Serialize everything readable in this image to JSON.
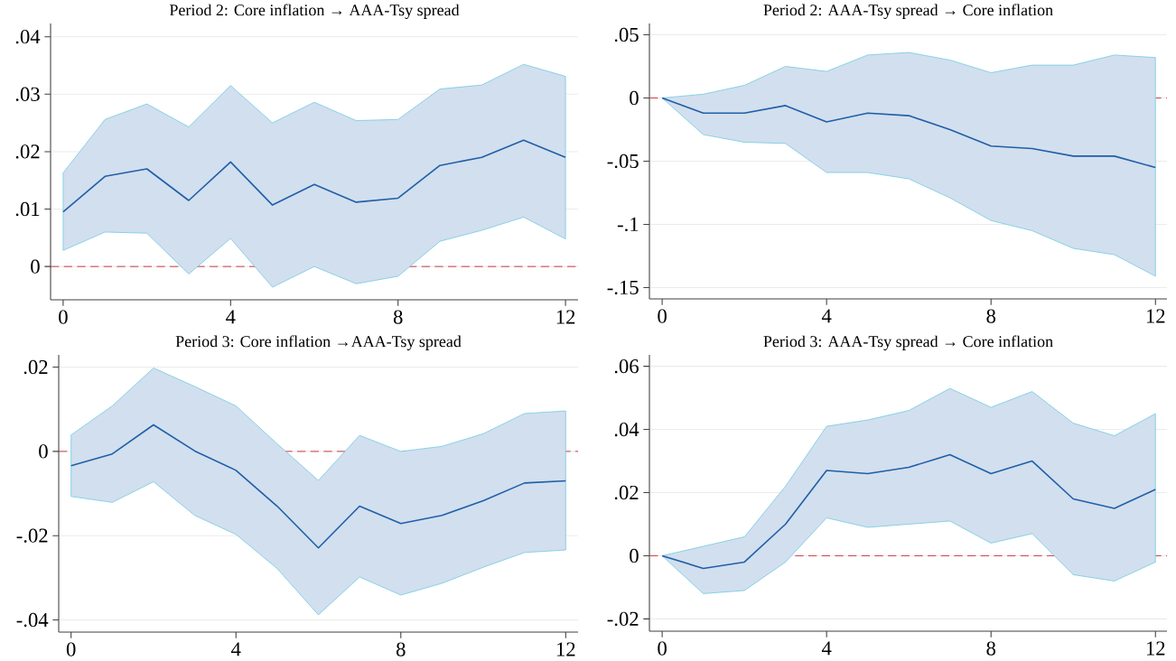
{
  "chart_data": [
    {
      "type": "line",
      "title": "Period 2: Core inflation → AAA-Tsy spread",
      "x": [
        0,
        1,
        2,
        3,
        4,
        5,
        6,
        7,
        8,
        9,
        10,
        11,
        12
      ],
      "series": [
        {
          "color": "#1f5fa8",
          "values": [
            0.0095,
            0.0157,
            0.017,
            0.0115,
            0.0182,
            0.0107,
            0.0143,
            0.0112,
            0.0119,
            0.0176,
            0.019,
            0.022,
            0.019
          ],
          "upper": [
            0.0163,
            0.0256,
            0.0283,
            0.0243,
            0.0315,
            0.025,
            0.0286,
            0.0254,
            0.0256,
            0.0309,
            0.0316,
            0.0352,
            0.0331
          ],
          "lower": [
            0.0028,
            0.006,
            0.0058,
            -0.0013,
            0.0049,
            -0.0036,
            0.0,
            -0.003,
            -0.0017,
            0.0044,
            0.0063,
            0.0086,
            0.0048
          ]
        }
      ],
      "xlim": [
        -0.3,
        12.3
      ],
      "ylim": [
        -0.0058,
        0.0423
      ],
      "xticks": [
        0,
        4,
        8,
        12
      ],
      "yticks": [
        {
          "value": 0,
          "label": "0"
        },
        {
          "value": 0.01,
          "label": ".01"
        },
        {
          "value": 0.02,
          "label": ".02"
        },
        {
          "value": 0.03,
          "label": ".03"
        },
        {
          "value": 0.04,
          "label": ".04"
        }
      ],
      "grid": "y",
      "ref_lines": [
        {
          "axis": "y",
          "value": 0,
          "color": "#c8323c",
          "line_style": "dashed"
        }
      ]
    },
    {
      "type": "line",
      "title": "Period 2: AAA-Tsy spread → Core inflation",
      "x": [
        0,
        1,
        2,
        3,
        4,
        5,
        6,
        7,
        8,
        9,
        10,
        11,
        12
      ],
      "series": [
        {
          "color": "#1f5fa8",
          "values": [
            0,
            -0.012,
            -0.012,
            -0.006,
            -0.019,
            -0.012,
            -0.014,
            -0.025,
            -0.038,
            -0.04,
            -0.046,
            -0.046,
            -0.055
          ],
          "upper": [
            0,
            0.003,
            0.01,
            0.025,
            0.021,
            0.034,
            0.036,
            0.03,
            0.02,
            0.026,
            0.026,
            0.034,
            0.032
          ],
          "lower": [
            0,
            -0.029,
            -0.035,
            -0.036,
            -0.059,
            -0.059,
            -0.064,
            -0.079,
            -0.097,
            -0.105,
            -0.119,
            -0.124,
            -0.141
          ]
        }
      ],
      "xlim": [
        -0.31,
        12.28
      ],
      "ylim": [
        -0.159,
        0.0589
      ],
      "xticks": [
        0,
        4,
        8,
        12
      ],
      "yticks": [
        {
          "value": -0.15,
          "label": "-.15"
        },
        {
          "value": -0.1,
          "label": "-.1"
        },
        {
          "value": -0.05,
          "label": "-.05"
        },
        {
          "value": 0,
          "label": "0"
        },
        {
          "value": 0.05,
          "label": ".05"
        }
      ],
      "grid": "y",
      "ref_lines": [
        {
          "axis": "y",
          "value": 0,
          "color": "#c8323c",
          "line_style": "dashed"
        }
      ]
    },
    {
      "type": "line",
      "title": "Period 3: Core inflation →AAA-Tsy spread",
      "x": [
        0,
        1,
        2,
        3,
        4,
        5,
        6,
        7,
        8,
        9,
        10,
        11,
        12
      ],
      "series": [
        {
          "color": "#1f5fa8",
          "values": [
            -0.0034,
            -0.0006,
            0.0063,
            0.0001,
            -0.0045,
            -0.013,
            -0.0229,
            -0.013,
            -0.0171,
            -0.0152,
            -0.0117,
            -0.0075,
            -0.007
          ],
          "upper": [
            0.0039,
            0.0108,
            0.0198,
            0.0154,
            0.0108,
            0.0018,
            -0.0069,
            0.0038,
            0,
            0.0012,
            0.0042,
            0.009,
            0.0096
          ],
          "lower": [
            -0.0107,
            -0.0121,
            -0.0072,
            -0.0152,
            -0.0197,
            -0.0278,
            -0.0388,
            -0.0298,
            -0.0341,
            -0.0313,
            -0.0275,
            -0.024,
            -0.0234
          ]
        }
      ],
      "xlim": [
        -0.3,
        12.3
      ],
      "ylim": [
        -0.0429,
        0.0229
      ],
      "xticks": [
        0,
        4,
        8,
        12
      ],
      "yticks": [
        {
          "value": -0.04,
          "label": "-.04"
        },
        {
          "value": -0.02,
          "label": "-.02"
        },
        {
          "value": 0,
          "label": "0"
        },
        {
          "value": 0.02,
          "label": ".02"
        }
      ],
      "grid": "y",
      "ref_lines": [
        {
          "axis": "y",
          "value": 0,
          "color": "#c8323c",
          "line_style": "dashed"
        }
      ]
    },
    {
      "type": "line",
      "title": "Period 3: AAA-Tsy spread → Core inflation",
      "x": [
        0,
        1,
        2,
        3,
        4,
        5,
        6,
        7,
        8,
        9,
        10,
        11,
        12
      ],
      "series": [
        {
          "color": "#1f5fa8",
          "values": [
            0,
            -0.004,
            -0.002,
            0.01,
            0.027,
            0.026,
            0.028,
            0.032,
            0.026,
            0.03,
            0.018,
            0.015,
            0.021
          ],
          "upper": [
            0,
            0.003,
            0.006,
            0.022,
            0.041,
            0.043,
            0.046,
            0.053,
            0.047,
            0.052,
            0.042,
            0.038,
            0.045
          ],
          "lower": [
            0,
            -0.012,
            -0.011,
            -0.002,
            0.012,
            0.009,
            0.01,
            0.011,
            0.004,
            0.007,
            -0.006,
            -0.008,
            -0.002
          ]
        }
      ],
      "xlim": [
        -0.31,
        12.28
      ],
      "ylim": [
        -0.0239,
        0.0636
      ],
      "xticks": [
        0,
        4,
        8,
        12
      ],
      "yticks": [
        {
          "value": -0.02,
          "label": "-.02"
        },
        {
          "value": 0,
          "label": "0"
        },
        {
          "value": 0.02,
          "label": ".02"
        },
        {
          "value": 0.04,
          "label": ".04"
        },
        {
          "value": 0.06,
          "label": ".06"
        }
      ],
      "grid": "y",
      "ref_lines": [
        {
          "axis": "y",
          "value": 0,
          "color": "#c8323c",
          "line_style": "dashed"
        }
      ]
    }
  ]
}
